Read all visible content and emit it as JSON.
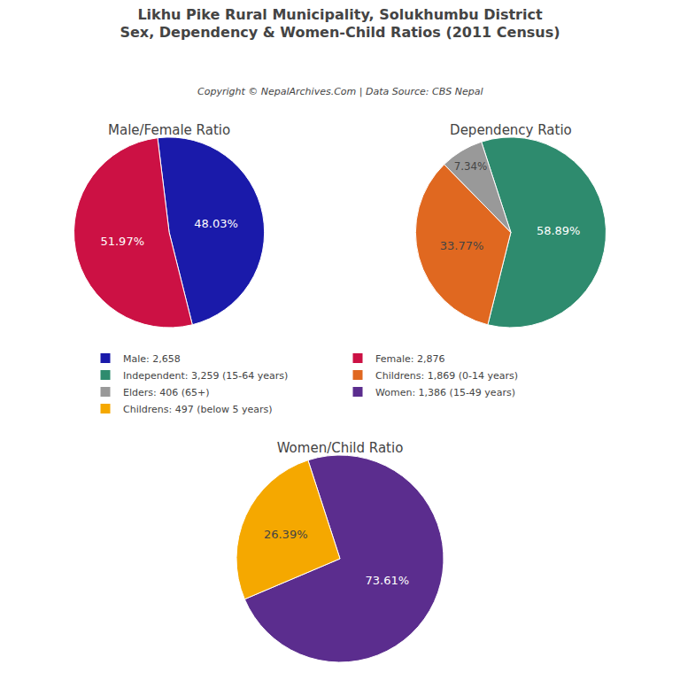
{
  "title": "Likhu Pike Rural Municipality, Solukhumbu District",
  "subtitle": "Sex, Dependency & Women-Child Ratios (2011 Census)",
  "annotations": [
    "Copyright © NepalArchives.Com | Data Source: CBS Nepal"
  ],
  "legend": "center",
  "chart_data": [
    {
      "type": "pie",
      "title": "Male/Female Ratio",
      "categories": [
        "Male: 2,658",
        "Female: 2,876"
      ],
      "values": [
        48.03,
        51.97
      ],
      "value_labels": [
        "48.03%",
        "51.97%"
      ],
      "colors": [
        "#1a1aaa",
        "#cc1144"
      ],
      "data_labels": true
    },
    {
      "type": "pie",
      "title": "Dependency Ratio",
      "categories": [
        "Independent: 3,259 (15-64 years)",
        "Childrens: 1,869 (0-14 years)",
        "Elders: 406 (65+)"
      ],
      "values": [
        58.89,
        33.77,
        7.34
      ],
      "value_labels": [
        "58.89%",
        "33.77%",
        "7.34%"
      ],
      "colors": [
        "#2e8b6e",
        "#e06820",
        "#999999"
      ],
      "data_labels": true
    },
    {
      "type": "pie",
      "title": "Women/Child Ratio",
      "categories": [
        "Women: 1,386 (15-49 years)",
        "Childrens: 497 (below 5 years)"
      ],
      "values": [
        73.61,
        26.39
      ],
      "value_labels": [
        "73.61%",
        "26.39%"
      ],
      "colors": [
        "#5b2d8e",
        "#f5a800"
      ],
      "data_labels": true
    }
  ]
}
